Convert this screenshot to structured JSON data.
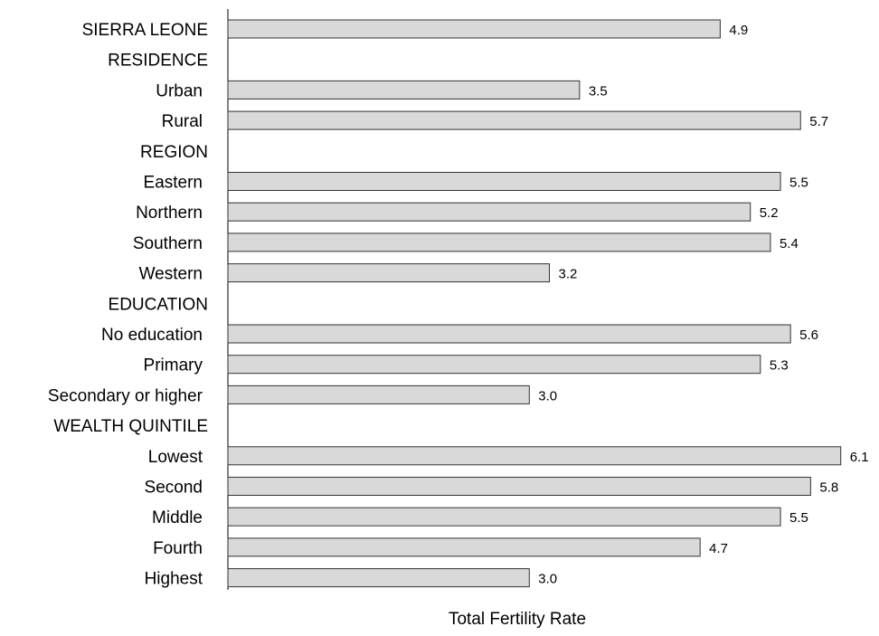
{
  "chart_data": {
    "type": "bar",
    "orientation": "horizontal",
    "xlabel": "Total Fertility Rate",
    "xlim": [
      0,
      6.4
    ],
    "grid": false,
    "bar_color": "#d9d9d9",
    "bar_stroke": "#333333",
    "rows": [
      {
        "label": "SIERRA LEONE",
        "value": 4.9,
        "value_label": "4.9",
        "kind": "bar",
        "align": "right"
      },
      {
        "label": "RESIDENCE",
        "kind": "header"
      },
      {
        "label": "Urban",
        "value": 3.5,
        "value_label": "3.5",
        "kind": "bar"
      },
      {
        "label": "Rural",
        "value": 5.7,
        "value_label": "5.7",
        "kind": "bar"
      },
      {
        "label": "REGION",
        "kind": "header"
      },
      {
        "label": "Eastern",
        "value": 5.5,
        "value_label": "5.5",
        "kind": "bar"
      },
      {
        "label": "Northern",
        "value": 5.2,
        "value_label": "5.2",
        "kind": "bar"
      },
      {
        "label": "Southern",
        "value": 5.4,
        "value_label": "5.4",
        "kind": "bar"
      },
      {
        "label": "Western",
        "value": 3.2,
        "value_label": "3.2",
        "kind": "bar"
      },
      {
        "label": "EDUCATION",
        "kind": "header"
      },
      {
        "label": "No education",
        "value": 5.6,
        "value_label": "5.6",
        "kind": "bar"
      },
      {
        "label": "Primary",
        "value": 5.3,
        "value_label": "5.3",
        "kind": "bar"
      },
      {
        "label": "Secondary or higher",
        "value": 3.0,
        "value_label": "3.0",
        "kind": "bar"
      },
      {
        "label": "WEALTH QUINTILE",
        "kind": "header"
      },
      {
        "label": "Lowest",
        "value": 6.1,
        "value_label": "6.1",
        "kind": "bar"
      },
      {
        "label": "Second",
        "value": 5.8,
        "value_label": "5.8",
        "kind": "bar"
      },
      {
        "label": "Middle",
        "value": 5.5,
        "value_label": "5.5",
        "kind": "bar"
      },
      {
        "label": "Fourth",
        "value": 4.7,
        "value_label": "4.7",
        "kind": "bar"
      },
      {
        "label": "Highest",
        "value": 3.0,
        "value_label": "3.0",
        "kind": "bar"
      }
    ]
  }
}
